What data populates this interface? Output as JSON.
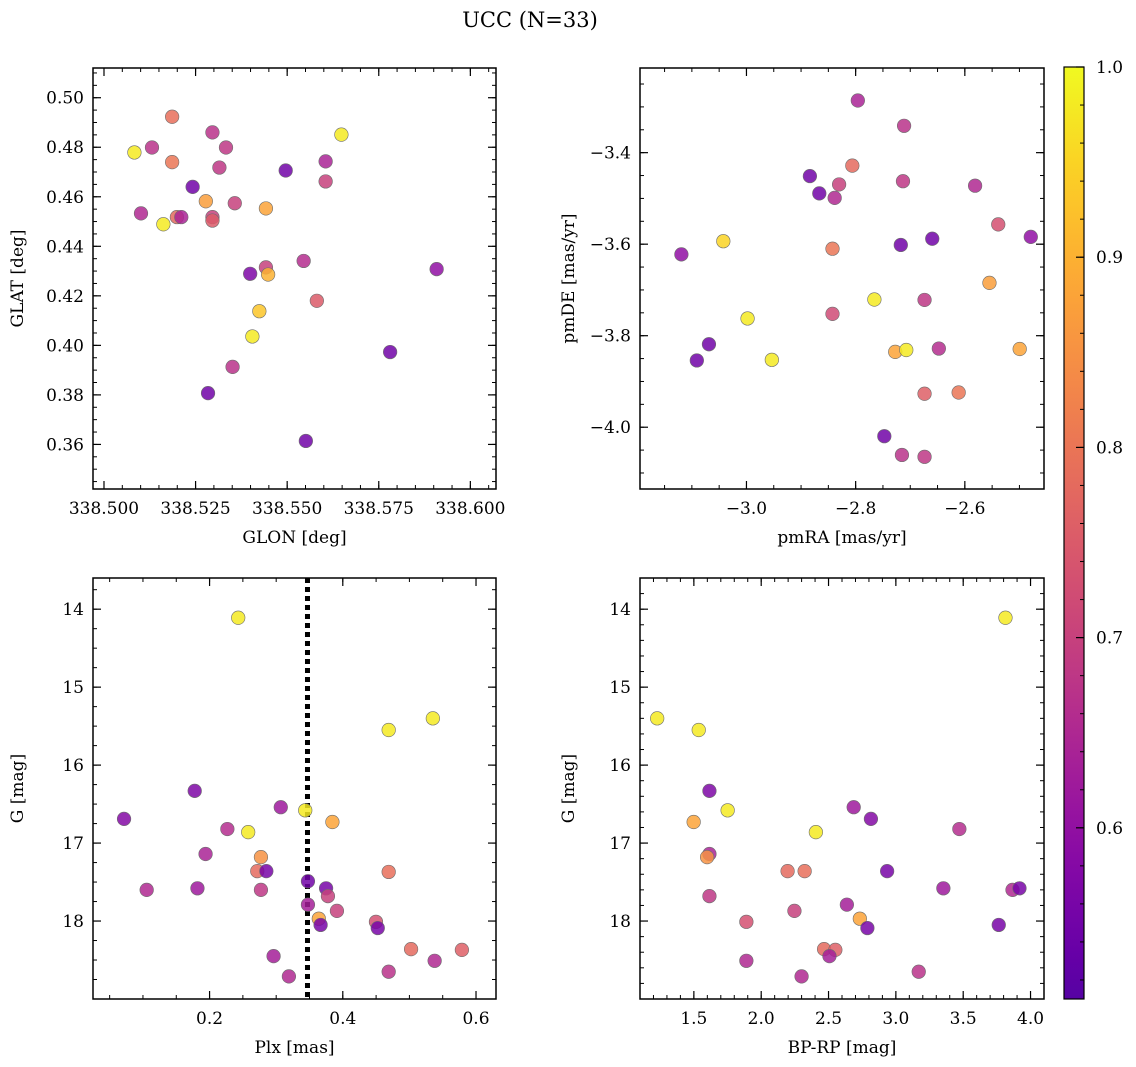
{
  "figure": {
    "title": "UCC (N=33)",
    "colorbar": {
      "colormap": "plasma",
      "range": [
        0.51,
        1.0
      ],
      "ticks": [
        0.6,
        0.7,
        0.8,
        0.9,
        1.0
      ],
      "tick_labels": [
        "0.6",
        "0.7",
        "0.8",
        "0.9",
        "1.0"
      ]
    }
  },
  "chart_data": [
    {
      "type": "scatter",
      "xlabel": "GLON [deg]",
      "ylabel": "GLAT [deg]",
      "xlim": [
        338.497,
        338.607
      ],
      "ylim": [
        0.342,
        0.512
      ],
      "xticks": [
        338.5,
        338.525,
        338.55,
        338.575,
        338.6
      ],
      "xtick_labels": [
        "338.500",
        "338.525",
        "338.550",
        "338.575",
        "338.600"
      ],
      "yticks": [
        0.36,
        0.38,
        0.4,
        0.42,
        0.44,
        0.46,
        0.48,
        0.5
      ],
      "ytick_labels": [
        "0.36",
        "0.38",
        "0.40",
        "0.42",
        "0.44",
        "0.46",
        "0.48",
        "0.50"
      ],
      "points": [
        {
          "x": 338.5083,
          "y": 0.4779,
          "c": 0.98
        },
        {
          "x": 338.5131,
          "y": 0.4799,
          "c": 0.67
        },
        {
          "x": 338.5186,
          "y": 0.4923,
          "c": 0.79
        },
        {
          "x": 338.5186,
          "y": 0.474,
          "c": 0.8
        },
        {
          "x": 338.5101,
          "y": 0.4533,
          "c": 0.65
        },
        {
          "x": 338.5162,
          "y": 0.4489,
          "c": 0.98
        },
        {
          "x": 338.5199,
          "y": 0.4518,
          "c": 0.78
        },
        {
          "x": 338.5211,
          "y": 0.4518,
          "c": 0.64
        },
        {
          "x": 338.5242,
          "y": 0.464,
          "c": 0.55
        },
        {
          "x": 338.5278,
          "y": 0.4582,
          "c": 0.87
        },
        {
          "x": 338.5296,
          "y": 0.486,
          "c": 0.67
        },
        {
          "x": 338.5296,
          "y": 0.4518,
          "c": 0.7
        },
        {
          "x": 338.5296,
          "y": 0.4504,
          "c": 0.75
        },
        {
          "x": 338.5315,
          "y": 0.4718,
          "c": 0.68
        },
        {
          "x": 338.5333,
          "y": 0.4799,
          "c": 0.68
        },
        {
          "x": 338.5357,
          "y": 0.4574,
          "c": 0.7
        },
        {
          "x": 338.5351,
          "y": 0.3913,
          "c": 0.67
        },
        {
          "x": 338.5284,
          "y": 0.3807,
          "c": 0.55
        },
        {
          "x": 338.5399,
          "y": 0.4289,
          "c": 0.57
        },
        {
          "x": 338.5405,
          "y": 0.4036,
          "c": 0.98
        },
        {
          "x": 338.5424,
          "y": 0.4138,
          "c": 0.93
        },
        {
          "x": 338.5442,
          "y": 0.4553,
          "c": 0.88
        },
        {
          "x": 338.5442,
          "y": 0.4315,
          "c": 0.7
        },
        {
          "x": 338.5448,
          "y": 0.4286,
          "c": 0.9
        },
        {
          "x": 338.5496,
          "y": 0.4706,
          "c": 0.55
        },
        {
          "x": 338.5545,
          "y": 0.4341,
          "c": 0.66
        },
        {
          "x": 338.5551,
          "y": 0.3614,
          "c": 0.55
        },
        {
          "x": 338.5581,
          "y": 0.418,
          "c": 0.75
        },
        {
          "x": 338.5605,
          "y": 0.4743,
          "c": 0.64
        },
        {
          "x": 338.5605,
          "y": 0.4662,
          "c": 0.7
        },
        {
          "x": 338.5648,
          "y": 0.4851,
          "c": 0.98
        },
        {
          "x": 338.5781,
          "y": 0.3973,
          "c": 0.55
        },
        {
          "x": 338.5908,
          "y": 0.4308,
          "c": 0.6
        }
      ]
    },
    {
      "type": "scatter",
      "xlabel": "pmRA [mas/yr]",
      "ylabel": "pmDE [mas/yr]",
      "xlim": [
        -3.195,
        -2.455
      ],
      "ylim": [
        -4.135,
        -3.215
      ],
      "xticks": [
        -3.0,
        -2.8,
        -2.6
      ],
      "xtick_labels": [
        "−3.0",
        "−2.8",
        "−2.6"
      ],
      "yticks": [
        -4.0,
        -3.8,
        -3.6,
        -3.4
      ],
      "ytick_labels": [
        "−4.0",
        "−3.8",
        "−3.6",
        "−3.4"
      ],
      "points": [
        {
          "x": -2.796,
          "y": -3.286,
          "c": 0.64
        },
        {
          "x": -2.7113,
          "y": -3.3413,
          "c": 0.67
        },
        {
          "x": -2.8061,
          "y": -3.4283,
          "c": 0.78
        },
        {
          "x": -2.8838,
          "y": -3.4512,
          "c": 0.55
        },
        {
          "x": -2.8303,
          "y": -3.4694,
          "c": 0.7
        },
        {
          "x": -2.8666,
          "y": -3.489,
          "c": 0.55
        },
        {
          "x": -2.8384,
          "y": -3.4988,
          "c": 0.65
        },
        {
          "x": -2.7133,
          "y": -3.4624,
          "c": 0.68
        },
        {
          "x": -2.5812,
          "y": -3.4722,
          "c": 0.65
        },
        {
          "x": -2.5388,
          "y": -3.5568,
          "c": 0.73
        },
        {
          "x": -2.4792,
          "y": -3.5841,
          "c": 0.6
        },
        {
          "x": -2.7173,
          "y": -3.6017,
          "c": 0.55
        },
        {
          "x": -2.6597,
          "y": -3.5881,
          "c": 0.55
        },
        {
          "x": -3.0424,
          "y": -3.5935,
          "c": 0.95
        },
        {
          "x": -3.1192,
          "y": -3.6222,
          "c": 0.6
        },
        {
          "x": -2.8424,
          "y": -3.6099,
          "c": 0.8
        },
        {
          "x": -2.5549,
          "y": -3.6845,
          "c": 0.87
        },
        {
          "x": -2.7657,
          "y": -3.7209,
          "c": 0.98
        },
        {
          "x": -2.6738,
          "y": -3.7218,
          "c": 0.68
        },
        {
          "x": -2.998,
          "y": -3.7623,
          "c": 0.98
        },
        {
          "x": -2.8424,
          "y": -3.7523,
          "c": 0.72
        },
        {
          "x": -3.0687,
          "y": -3.8186,
          "c": 0.55
        },
        {
          "x": -3.0909,
          "y": -3.8541,
          "c": 0.55
        },
        {
          "x": -2.9535,
          "y": -3.8527,
          "c": 0.98
        },
        {
          "x": -2.7275,
          "y": -3.8354,
          "c": 0.88
        },
        {
          "x": -2.7073,
          "y": -3.8313,
          "c": 0.98
        },
        {
          "x": -2.6476,
          "y": -3.8281,
          "c": 0.66
        },
        {
          "x": -2.4995,
          "y": -3.829,
          "c": 0.88
        },
        {
          "x": -2.6113,
          "y": -3.9241,
          "c": 0.8
        },
        {
          "x": -2.6738,
          "y": -3.9268,
          "c": 0.76
        },
        {
          "x": -2.7475,
          "y": -4.0196,
          "c": 0.55
        },
        {
          "x": -2.7152,
          "y": -4.0606,
          "c": 0.67
        },
        {
          "x": -2.6738,
          "y": -4.0647,
          "c": 0.68
        }
      ]
    },
    {
      "type": "scatter",
      "xlabel": "Plx [mas]",
      "ylabel": "G [mag]",
      "xlim": [
        0.025,
        0.63
      ],
      "ylim": [
        19.0,
        13.6
      ],
      "y_inverted": true,
      "xticks": [
        0.2,
        0.4,
        0.6
      ],
      "xtick_labels": [
        "0.2",
        "0.4",
        "0.6"
      ],
      "yticks": [
        14,
        15,
        16,
        17,
        18
      ],
      "ytick_labels": [
        "14",
        "15",
        "16",
        "17",
        "18"
      ],
      "vline": {
        "x": 0.347,
        "style": "dotted"
      },
      "points": [
        {
          "x": 0.243,
          "y": 14.11,
          "c": 0.98
        },
        {
          "x": 0.4689,
          "y": 15.55,
          "c": 0.98
        },
        {
          "x": 0.5352,
          "y": 15.4,
          "c": 0.98
        },
        {
          "x": 0.1777,
          "y": 16.33,
          "c": 0.57
        },
        {
          "x": 0.0716,
          "y": 16.69,
          "c": 0.58
        },
        {
          "x": 0.3069,
          "y": 16.54,
          "c": 0.62
        },
        {
          "x": 0.3436,
          "y": 16.58,
          "c": 0.98
        },
        {
          "x": 0.3844,
          "y": 16.73,
          "c": 0.88
        },
        {
          "x": 0.2267,
          "y": 16.82,
          "c": 0.66
        },
        {
          "x": 0.258,
          "y": 16.86,
          "c": 0.98
        },
        {
          "x": 0.194,
          "y": 17.14,
          "c": 0.64
        },
        {
          "x": 0.2771,
          "y": 17.18,
          "c": 0.85
        },
        {
          "x": 0.2716,
          "y": 17.36,
          "c": 0.78
        },
        {
          "x": 0.2852,
          "y": 17.36,
          "c": 0.56
        },
        {
          "x": 0.4689,
          "y": 17.37,
          "c": 0.79
        },
        {
          "x": 0.3477,
          "y": 17.49,
          "c": 0.55
        },
        {
          "x": 0.1056,
          "y": 17.6,
          "c": 0.65
        },
        {
          "x": 0.1818,
          "y": 17.58,
          "c": 0.62
        },
        {
          "x": 0.2771,
          "y": 17.6,
          "c": 0.68
        },
        {
          "x": 0.3749,
          "y": 17.58,
          "c": 0.56
        },
        {
          "x": 0.3777,
          "y": 17.68,
          "c": 0.7
        },
        {
          "x": 0.3477,
          "y": 17.79,
          "c": 0.63
        },
        {
          "x": 0.3912,
          "y": 17.87,
          "c": 0.7
        },
        {
          "x": 0.364,
          "y": 17.97,
          "c": 0.88
        },
        {
          "x": 0.3667,
          "y": 18.05,
          "c": 0.56
        },
        {
          "x": 0.4498,
          "y": 18.01,
          "c": 0.73
        },
        {
          "x": 0.4525,
          "y": 18.09,
          "c": 0.56
        },
        {
          "x": 0.5025,
          "y": 18.36,
          "c": 0.78
        },
        {
          "x": 0.5788,
          "y": 18.37,
          "c": 0.76
        },
        {
          "x": 0.2961,
          "y": 18.45,
          "c": 0.63
        },
        {
          "x": 0.5379,
          "y": 18.51,
          "c": 0.65
        },
        {
          "x": 0.4689,
          "y": 18.65,
          "c": 0.67
        },
        {
          "x": 0.3191,
          "y": 18.71,
          "c": 0.65
        }
      ]
    },
    {
      "type": "scatter",
      "xlabel": "BP-RP [mag]",
      "ylabel": "G [mag]",
      "xlim": [
        1.1,
        4.1
      ],
      "ylim": [
        19.0,
        13.6
      ],
      "y_inverted": true,
      "xticks": [
        1.5,
        2.0,
        2.5,
        3.0,
        3.5,
        4.0
      ],
      "xtick_labels": [
        "1.5",
        "2.0",
        "2.5",
        "3.0",
        "3.5",
        "4.0"
      ],
      "yticks": [
        14,
        15,
        16,
        17,
        18
      ],
      "ytick_labels": [
        "14",
        "15",
        "16",
        "17",
        "18"
      ],
      "points": [
        {
          "x": 3.8139,
          "y": 14.11,
          "c": 0.98
        },
        {
          "x": 1.2276,
          "y": 15.4,
          "c": 0.98
        },
        {
          "x": 1.5362,
          "y": 15.55,
          "c": 0.98
        },
        {
          "x": 1.6156,
          "y": 16.33,
          "c": 0.57
        },
        {
          "x": 1.7509,
          "y": 16.58,
          "c": 0.98
        },
        {
          "x": 2.6869,
          "y": 16.54,
          "c": 0.62
        },
        {
          "x": 2.8148,
          "y": 16.69,
          "c": 0.58
        },
        {
          "x": 1.4985,
          "y": 16.73,
          "c": 0.88
        },
        {
          "x": 2.406,
          "y": 16.86,
          "c": 0.98
        },
        {
          "x": 3.4714,
          "y": 16.82,
          "c": 0.66
        },
        {
          "x": 1.6156,
          "y": 17.14,
          "c": 0.64
        },
        {
          "x": 1.5982,
          "y": 17.18,
          "c": 0.85
        },
        {
          "x": 2.196,
          "y": 17.36,
          "c": 0.78
        },
        {
          "x": 2.3227,
          "y": 17.36,
          "c": 0.79
        },
        {
          "x": 2.9351,
          "y": 17.36,
          "c": 0.56
        },
        {
          "x": 1.6156,
          "y": 17.68,
          "c": 0.68
        },
        {
          "x": 3.3527,
          "y": 17.58,
          "c": 0.62
        },
        {
          "x": 3.8662,
          "y": 17.6,
          "c": 0.65
        },
        {
          "x": 3.9178,
          "y": 17.58,
          "c": 0.56
        },
        {
          "x": 2.6362,
          "y": 17.79,
          "c": 0.63
        },
        {
          "x": 2.2468,
          "y": 17.87,
          "c": 0.7
        },
        {
          "x": 1.8898,
          "y": 18.01,
          "c": 0.73
        },
        {
          "x": 2.7325,
          "y": 17.97,
          "c": 0.88
        },
        {
          "x": 3.764,
          "y": 18.05,
          "c": 0.56
        },
        {
          "x": 2.7884,
          "y": 18.09,
          "c": 0.56
        },
        {
          "x": 2.4669,
          "y": 18.36,
          "c": 0.78
        },
        {
          "x": 2.5504,
          "y": 18.37,
          "c": 0.76
        },
        {
          "x": 2.5069,
          "y": 18.45,
          "c": 0.63
        },
        {
          "x": 1.8898,
          "y": 18.51,
          "c": 0.65
        },
        {
          "x": 3.1698,
          "y": 18.65,
          "c": 0.67
        },
        {
          "x": 2.2998,
          "y": 18.71,
          "c": 0.65
        }
      ]
    }
  ]
}
